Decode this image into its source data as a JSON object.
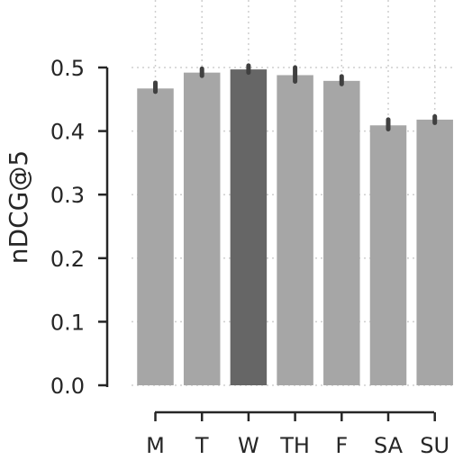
{
  "chart_data": {
    "type": "bar",
    "ylabel": "nDCG@5",
    "xlabel": "",
    "categories": [
      "M",
      "T",
      "W",
      "TH",
      "F",
      "SA",
      "SU"
    ],
    "values": [
      0.467,
      0.492,
      0.497,
      0.488,
      0.479,
      0.409,
      0.418
    ],
    "error_low": [
      0.462,
      0.487,
      0.492,
      0.478,
      0.474,
      0.403,
      0.413
    ],
    "error_high": [
      0.476,
      0.498,
      0.503,
      0.5,
      0.486,
      0.418,
      0.423
    ],
    "highlight_index": 2,
    "ylim": [
      0,
      0.5
    ],
    "yticks": [
      0.0,
      0.1,
      0.2,
      0.3,
      0.4,
      0.5
    ],
    "ytick_labels": [
      "0.0",
      "0.1",
      "0.2",
      "0.3",
      "0.4",
      "0.5"
    ],
    "grid": true,
    "colors": {
      "bar": "#a6a6a6",
      "highlight_bar": "#666666",
      "error_bar": "#404040",
      "axis": "#262626",
      "grid": "#cfcfcf"
    }
  }
}
